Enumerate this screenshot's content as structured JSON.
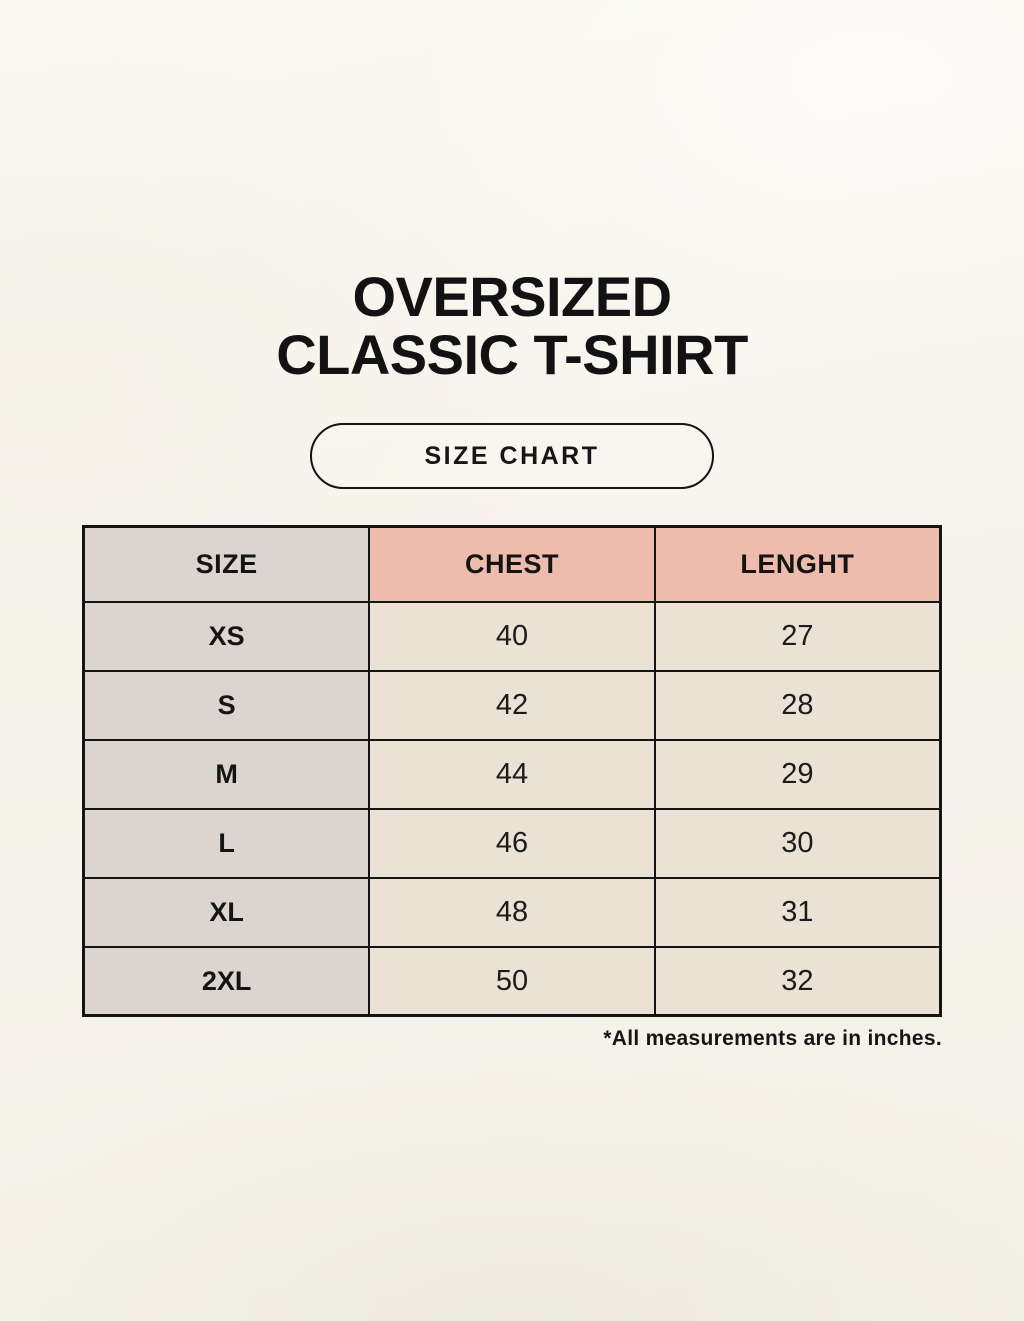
{
  "page": {
    "title_lines": [
      "OVERSIZED",
      "CLASSIC T-SHIRT"
    ],
    "badge_label": "SIZE CHART",
    "footnote": "*All measurements are in inches."
  },
  "colors": {
    "background_top": "#faf8f1",
    "background_bottom": "#f3f0e8",
    "header_pink": "#edbcac",
    "size_column_gray": "#dcd5cf",
    "data_cell_beige": "#eae2d5",
    "border_black": "#141414",
    "text_black": "#141414"
  },
  "chart_data": {
    "type": "table",
    "title": "OVERSIZED CLASSIC T-SHIRT",
    "subtitle": "SIZE CHART",
    "columns": [
      "SIZE",
      "CHEST",
      "LENGHT"
    ],
    "rows": [
      [
        "XS",
        "40",
        "27"
      ],
      [
        "S",
        "42",
        "28"
      ],
      [
        "M",
        "44",
        "29"
      ],
      [
        "L",
        "46",
        "30"
      ],
      [
        "XL",
        "48",
        "31"
      ],
      [
        "2XL",
        "50",
        "32"
      ]
    ],
    "note": "*All measurements are in inches."
  }
}
